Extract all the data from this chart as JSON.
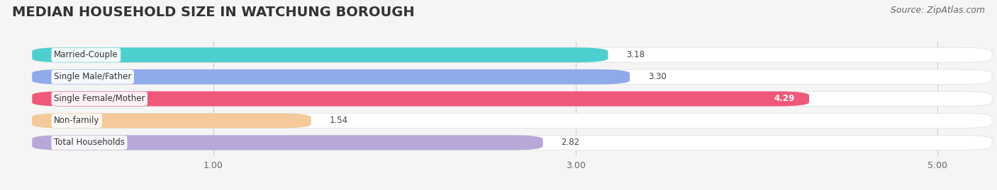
{
  "title": "MEDIAN HOUSEHOLD SIZE IN WATCHUNG BOROUGH",
  "source": "Source: ZipAtlas.com",
  "categories": [
    "Married-Couple",
    "Single Male/Father",
    "Single Female/Mother",
    "Non-family",
    "Total Households"
  ],
  "values": [
    3.18,
    3.3,
    4.29,
    1.54,
    2.82
  ],
  "bar_colors": [
    "#4ecfcf",
    "#8eaaeb",
    "#f0587a",
    "#f5c99a",
    "#b8a8d8"
  ],
  "xlim_min": -0.15,
  "xlim_max": 5.3,
  "xticks": [
    1.0,
    3.0,
    5.0
  ],
  "background_color": "#f5f5f5",
  "bar_bg_color": "#ebebeb",
  "title_fontsize": 14,
  "source_fontsize": 9,
  "bar_height": 0.68,
  "bar_spacing": 1.0
}
